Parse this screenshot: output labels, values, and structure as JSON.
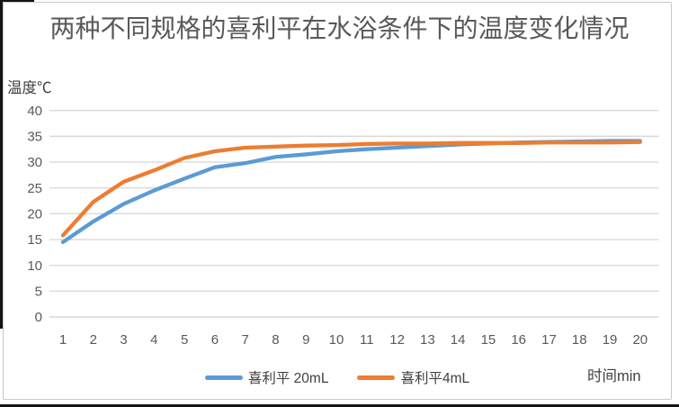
{
  "chart_data": {
    "type": "line",
    "title": "两种不同规格的喜利平在水浴条件下的温度变化情况",
    "y_axis_label": "温度℃",
    "x_axis_label": "时间min",
    "x": [
      1,
      2,
      3,
      4,
      5,
      6,
      7,
      8,
      9,
      10,
      11,
      12,
      13,
      14,
      15,
      16,
      17,
      18,
      19,
      20
    ],
    "y_ticks": [
      0,
      5,
      10,
      15,
      20,
      25,
      30,
      35,
      40
    ],
    "ylim": [
      0,
      40
    ],
    "grid": true,
    "legend_position": "bottom",
    "series": [
      {
        "name": "喜利平 20mL",
        "color": "#5B9BD5",
        "values": [
          14.5,
          18.5,
          21.9,
          24.5,
          26.8,
          29,
          29.8,
          31,
          31.5,
          32.1,
          32.5,
          32.8,
          33.1,
          33.4,
          33.6,
          33.8,
          33.9,
          34,
          34.1,
          34.1
        ]
      },
      {
        "name": "喜利平4mL",
        "color": "#ED7D31",
        "values": [
          15.8,
          22.3,
          26.2,
          28.4,
          30.8,
          32.1,
          32.8,
          33,
          33.2,
          33.3,
          33.5,
          33.6,
          33.6,
          33.7,
          33.7,
          33.7,
          33.8,
          33.8,
          33.8,
          33.9
        ]
      }
    ]
  },
  "colors": {
    "gridline": "#D9D9D9",
    "tick_text": "#595959",
    "title_text": "#595959",
    "axis_label_text": "#404040",
    "widget_border": "#C9C9C9",
    "background": "#FFFFFF",
    "edge_artifact": "#141414"
  }
}
